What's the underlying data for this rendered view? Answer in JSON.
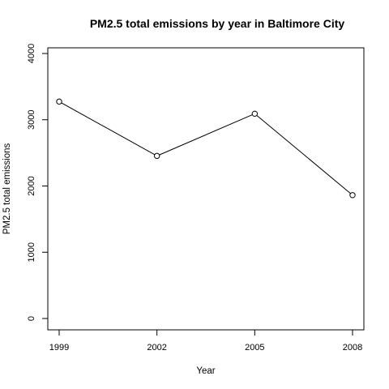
{
  "chart_data": {
    "type": "line",
    "title": "PM2.5 total emissions by year in Baltimore City",
    "xlabel": "Year",
    "ylabel": "PM2.5 total emissions",
    "categories": [
      "1999",
      "2002",
      "2005",
      "2008"
    ],
    "series": [
      {
        "name": "PM2.5 total emissions",
        "values": [
          3274,
          2454,
          3091,
          1862
        ]
      }
    ],
    "ylim": [
      0,
      4000
    ],
    "yticks": [
      "0",
      "1000",
      "2000",
      "3000",
      "4000"
    ],
    "xlim": [
      1999,
      2008
    ],
    "grid": false,
    "legend": "none",
    "marker": "open-circle",
    "line_color": "#000000"
  }
}
